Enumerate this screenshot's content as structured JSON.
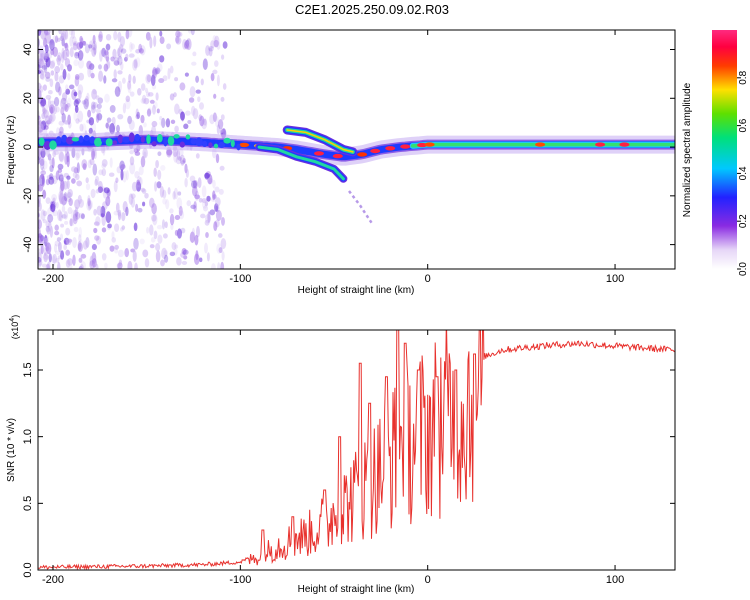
{
  "title": "C2E1.2025.250.09.02.R03",
  "chart_data": [
    {
      "type": "heatmap",
      "xlabel": "Height of straight line (km)",
      "ylabel": "Frequency (Hz)",
      "xlim": [
        -208,
        132
      ],
      "ylim": [
        -50,
        48
      ],
      "xticks": [
        -200,
        -100,
        0,
        100
      ],
      "yticks": [
        -40,
        -20,
        0,
        20,
        40
      ],
      "colorbar": {
        "label": "Normalized spectral amplitude",
        "range": [
          0,
          1
        ],
        "ticks": [
          "0.0",
          "0.2",
          "0.4",
          "0.6",
          "0.8"
        ]
      },
      "ridge": [
        [
          -208,
          2
        ],
        [
          -180,
          2
        ],
        [
          -150,
          3
        ],
        [
          -120,
          2
        ],
        [
          -100,
          1
        ],
        [
          -80,
          0
        ],
        [
          -70,
          -1
        ],
        [
          -55,
          -3
        ],
        [
          -45,
          -4
        ],
        [
          -35,
          -3
        ],
        [
          -25,
          -1
        ],
        [
          -15,
          0
        ],
        [
          0,
          1
        ],
        [
          50,
          1
        ],
        [
          100,
          1
        ],
        [
          132,
          1
        ]
      ],
      "upper_branch": [
        [
          -75,
          7
        ],
        [
          -65,
          6
        ],
        [
          -55,
          3
        ],
        [
          -45,
          -1
        ],
        [
          -40,
          -2
        ]
      ],
      "lower_branch": [
        [
          -90,
          0
        ],
        [
          -80,
          -1
        ],
        [
          -70,
          -4
        ],
        [
          -60,
          -6
        ],
        [
          -50,
          -9
        ],
        [
          -45,
          -13
        ]
      ],
      "faint_tail": [
        [
          -42,
          -18
        ],
        [
          -36,
          -24
        ],
        [
          -30,
          -31
        ]
      ]
    },
    {
      "type": "line",
      "xlabel": "Height of straight line (km)",
      "ylabel": "SNR (10 * v/v)",
      "ylabel_prefix": "(x10",
      "ylabel_exp": "4",
      "ylabel_suffix": ")",
      "xlim": [
        -208,
        132
      ],
      "ylim": [
        0,
        1.8
      ],
      "xticks": [
        -200,
        -100,
        0,
        100
      ],
      "yticks": [
        "0.0",
        "0.5",
        "1.0",
        "1.5"
      ],
      "series": [
        {
          "name": "SNR",
          "color": "#e8312d",
          "envelope": [
            [
              -208,
              0.02
            ],
            [
              -150,
              0.03
            ],
            [
              -120,
              0.04
            ],
            [
              -100,
              0.06
            ],
            [
              -90,
              0.12
            ],
            [
              -80,
              0.22
            ],
            [
              -70,
              0.28
            ],
            [
              -60,
              0.35
            ],
            [
              -50,
              0.5
            ],
            [
              -40,
              0.65
            ],
            [
              -30,
              0.8
            ],
            [
              -20,
              1.0
            ],
            [
              -10,
              1.15
            ],
            [
              0,
              1.25
            ],
            [
              10,
              1.38
            ],
            [
              20,
              1.5
            ],
            [
              30,
              1.6
            ],
            [
              40,
              1.65
            ],
            [
              60,
              1.68
            ],
            [
              80,
              1.7
            ],
            [
              100,
              1.68
            ],
            [
              120,
              1.66
            ],
            [
              132,
              1.65
            ]
          ],
          "spikes": [
            [
              -88,
              0.3
            ],
            [
              -72,
              0.4
            ],
            [
              -55,
              0.6
            ],
            [
              -47,
              1.0
            ],
            [
              -36,
              1.55
            ],
            [
              -31,
              1.25
            ],
            [
              -22,
              1.45
            ],
            [
              -16,
              1.82
            ],
            [
              -12,
              1.7
            ],
            [
              -5,
              1.5
            ],
            [
              5,
              1.45
            ],
            [
              15,
              1.5
            ],
            [
              25,
              1.62
            ]
          ]
        }
      ]
    }
  ]
}
